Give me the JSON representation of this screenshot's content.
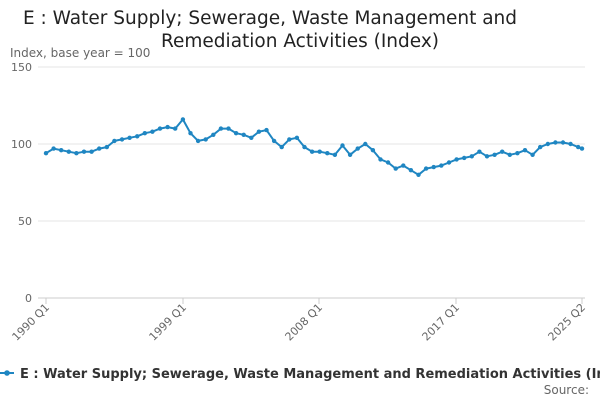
{
  "chart_data": {
    "type": "line",
    "title_lines": [
      "E : Water Supply; Sewerage, Waste Management and",
      "Remediation Activities (Index)"
    ],
    "ylabel": "Index, base year = 100",
    "ylim": [
      0,
      150
    ],
    "yticks": [
      "0",
      "50",
      "100",
      "150"
    ],
    "xticks": [
      "1990 Q1",
      "1999 Q1",
      "2008 Q1",
      "2017 Q1",
      "2025 Q2"
    ],
    "grid": true,
    "series": [
      {
        "name": "E : Water Supply; Sewerage, Waste Management and Remediation Activities (Index)",
        "color": "#1f86c2",
        "x": [
          1990.0,
          1990.5,
          1991.0,
          1991.5,
          1992.0,
          1992.5,
          1993.0,
          1993.5,
          1994.0,
          1994.5,
          1995.0,
          1995.5,
          1996.0,
          1996.5,
          1997.0,
          1997.5,
          1998.0,
          1998.5,
          1999.0,
          1999.5,
          2000.0,
          2000.5,
          2001.0,
          2001.5,
          2002.0,
          2002.5,
          2003.0,
          2003.5,
          2004.0,
          2004.5,
          2005.0,
          2005.5,
          2006.0,
          2006.5,
          2007.0,
          2007.5,
          2008.0,
          2008.5,
          2009.0,
          2009.5,
          2010.0,
          2010.5,
          2011.0,
          2011.5,
          2012.0,
          2012.5,
          2013.0,
          2013.5,
          2014.0,
          2014.5,
          2015.0,
          2015.5,
          2016.0,
          2016.5,
          2017.0,
          2017.5,
          2018.0,
          2018.5,
          2019.0,
          2019.5,
          2020.0,
          2020.5,
          2021.0,
          2021.5,
          2022.0,
          2022.5,
          2023.0,
          2023.5,
          2024.0,
          2024.5,
          2025.0,
          2025.25
        ],
        "values": [
          94,
          97,
          96,
          95,
          94,
          95,
          95,
          97,
          98,
          102,
          103,
          104,
          105,
          107,
          108,
          110,
          111,
          110,
          116,
          107,
          102,
          103,
          106,
          110,
          110,
          107,
          106,
          104,
          108,
          109,
          102,
          98,
          103,
          104,
          98,
          95,
          95,
          94,
          93,
          99,
          93,
          97,
          100,
          96,
          90,
          88,
          84,
          86,
          83,
          80,
          84,
          85,
          86,
          88,
          90,
          91,
          92,
          95,
          92,
          93,
          95,
          93,
          94,
          96,
          93,
          98,
          100,
          101,
          101,
          100,
          98,
          97
        ]
      }
    ],
    "source_label": "Source:"
  }
}
